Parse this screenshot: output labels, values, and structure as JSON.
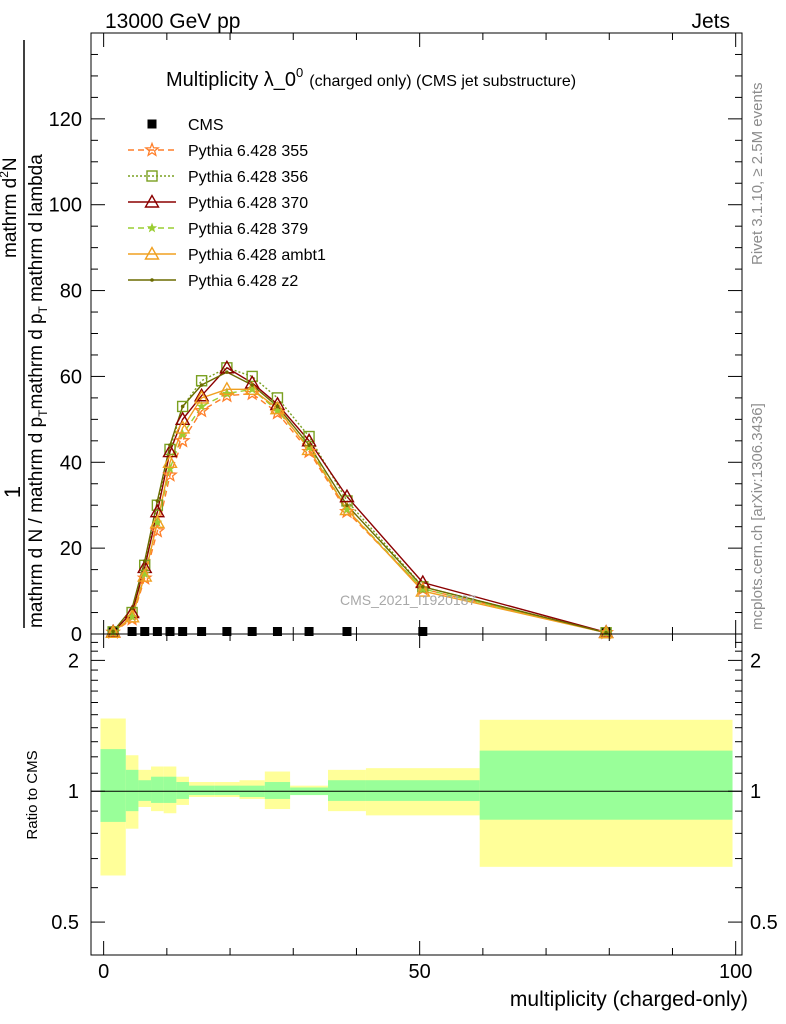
{
  "header": {
    "left": "13000 GeV pp",
    "right": "Jets"
  },
  "side_labels": {
    "rivet": "Rivet 3.1.10, ≥ 2.5M events",
    "mcplots": "mcplots.cern.ch [arXiv:1306.3436]"
  },
  "watermark": "CMS_2021_I1920187",
  "chart_data": [
    {
      "type": "line",
      "title_main": "Multiplicity λ_0",
      "title_sup": "0",
      "title_sub": "(charged only) (CMS jet substructure)",
      "ylabel_num": "1",
      "ylabel_den": "mathrm d N / mathrm d p",
      "ylabel_den_sub": "T",
      "ylabel_den_rest": "mathrm d p",
      "ylabel_den_rest_sub": "T",
      "ylabel_den_tail": "mathrm d lambda",
      "ylabel_num2": "mathrm d",
      "ylabel_num2_sup": "2",
      "ylabel_num2_rest": "N",
      "xlim": [
        -2,
        101
      ],
      "ylim": [
        0,
        140
      ],
      "yticks": [
        0,
        20,
        40,
        60,
        80,
        100,
        120
      ],
      "ytick_labels": [
        "0",
        "20",
        "40",
        "60",
        "80",
        "100",
        "120"
      ],
      "legend_position": "top-left",
      "series": [
        {
          "name": "CMS",
          "color": "#000000",
          "marker": "square",
          "dash": "",
          "x": [
            1.5,
            4.5,
            6.5,
            8.5,
            10.5,
            12.5,
            15.5,
            19.5,
            23.5,
            27.5,
            32.5,
            38.5,
            50.5,
            79.5
          ],
          "y": [
            0.6,
            0.6,
            0.6,
            0.6,
            0.6,
            0.6,
            0.6,
            0.6,
            0.6,
            0.6,
            0.6,
            0.6,
            0.6,
            0.6
          ]
        },
        {
          "name": "Pythia 6.428 355",
          "color": "#ff7f2a",
          "marker": "star",
          "dash": "6,4",
          "x": [
            1.5,
            4.5,
            6.5,
            8.5,
            10.5,
            12.5,
            15.5,
            19.5,
            23.5,
            27.5,
            32.5,
            38.5,
            50.5,
            79.5
          ],
          "y": [
            0.4,
            3.5,
            13,
            24,
            37,
            45,
            52,
            55.5,
            56,
            51.5,
            42.5,
            28.5,
            10.5,
            0.3
          ]
        },
        {
          "name": "Pythia 6.428 356",
          "color": "#7aa020",
          "marker": "square-open",
          "dash": "2,2",
          "x": [
            1.5,
            4.5,
            6.5,
            8.5,
            10.5,
            12.5,
            15.5,
            19.5,
            23.5,
            27.5,
            32.5,
            38.5,
            50.5,
            79.5
          ],
          "y": [
            0.5,
            5,
            16,
            30,
            43,
            53,
            59,
            62,
            60,
            55,
            46,
            31,
            11,
            0.3
          ]
        },
        {
          "name": "Pythia 6.428 370",
          "color": "#8b0000",
          "marker": "triangle-open",
          "dash": "",
          "x": [
            1.5,
            4.5,
            6.5,
            8.5,
            10.5,
            12.5,
            15.5,
            19.5,
            23.5,
            27.5,
            32.5,
            38.5,
            50.5,
            79.5
          ],
          "y": [
            0.5,
            5,
            15.5,
            28.5,
            42.5,
            50,
            55.5,
            62,
            58.5,
            53.5,
            45,
            32,
            12,
            0.4
          ]
        },
        {
          "name": "Pythia 6.428 379",
          "color": "#9acd32",
          "marker": "star-small",
          "dash": "6,4",
          "x": [
            1.5,
            4.5,
            6.5,
            8.5,
            10.5,
            12.5,
            15.5,
            19.5,
            23.5,
            27.5,
            32.5,
            38.5,
            50.5,
            79.5
          ],
          "y": [
            0.4,
            4,
            14,
            26,
            38.5,
            46.5,
            53,
            56,
            57,
            52,
            43.5,
            29,
            10.5,
            0.3
          ]
        },
        {
          "name": "Pythia 6.428 ambt1",
          "color": "#f0a020",
          "marker": "triangle-open",
          "dash": "",
          "x": [
            1.5,
            4.5,
            6.5,
            8.5,
            10.5,
            12.5,
            15.5,
            19.5,
            23.5,
            27.5,
            32.5,
            38.5,
            50.5,
            79.5
          ],
          "y": [
            0.4,
            4,
            13.5,
            26,
            40,
            48,
            55,
            57,
            57,
            52.5,
            43,
            29,
            10,
            0.3
          ]
        },
        {
          "name": "Pythia 6.428 z2",
          "color": "#6b6b00",
          "marker": "dot",
          "dash": "",
          "x": [
            1.5,
            4.5,
            6.5,
            8.5,
            10.5,
            12.5,
            15.5,
            19.5,
            23.5,
            27.5,
            32.5,
            38.5,
            50.5,
            79.5
          ],
          "y": [
            0.6,
            6,
            17,
            31,
            44,
            53,
            58,
            61,
            58,
            53,
            44,
            30,
            11,
            0.3
          ]
        }
      ]
    },
    {
      "type": "area",
      "ylabel": "Ratio to CMS",
      "xlabel": "multiplicity (charged-only)",
      "xlim": [
        -2,
        101
      ],
      "ylim": [
        0.42,
        2.3
      ],
      "log_y": true,
      "xticks": [
        0,
        50,
        100
      ],
      "xtick_labels": [
        "0",
        "50",
        "100"
      ],
      "yticks": [
        0.5,
        1,
        2
      ],
      "ytick_labels": [
        "0.5",
        "1",
        "2"
      ],
      "bins": [
        {
          "lo": -0.5,
          "hi": 3.5,
          "stat_lo": 0.85,
          "stat_hi": 1.25,
          "tot_lo": 0.64,
          "tot_hi": 1.47
        },
        {
          "lo": 3.5,
          "hi": 5.5,
          "stat_lo": 0.9,
          "stat_hi": 1.12,
          "tot_lo": 0.82,
          "tot_hi": 1.21
        },
        {
          "lo": 5.5,
          "hi": 7.5,
          "stat_lo": 0.95,
          "stat_hi": 1.06,
          "tot_lo": 0.92,
          "tot_hi": 1.12
        },
        {
          "lo": 7.5,
          "hi": 9.5,
          "stat_lo": 0.94,
          "stat_hi": 1.08,
          "tot_lo": 0.9,
          "tot_hi": 1.14
        },
        {
          "lo": 9.5,
          "hi": 11.5,
          "stat_lo": 0.94,
          "stat_hi": 1.08,
          "tot_lo": 0.89,
          "tot_hi": 1.14
        },
        {
          "lo": 11.5,
          "hi": 13.5,
          "stat_lo": 0.96,
          "stat_hi": 1.05,
          "tot_lo": 0.93,
          "tot_hi": 1.08
        },
        {
          "lo": 13.5,
          "hi": 17.5,
          "stat_lo": 0.98,
          "stat_hi": 1.03,
          "tot_lo": 0.97,
          "tot_hi": 1.05
        },
        {
          "lo": 17.5,
          "hi": 21.5,
          "stat_lo": 0.98,
          "stat_hi": 1.03,
          "tot_lo": 0.97,
          "tot_hi": 1.05
        },
        {
          "lo": 21.5,
          "hi": 25.5,
          "stat_lo": 0.97,
          "stat_hi": 1.03,
          "tot_lo": 0.96,
          "tot_hi": 1.06
        },
        {
          "lo": 25.5,
          "hi": 29.5,
          "stat_lo": 0.96,
          "stat_hi": 1.05,
          "tot_lo": 0.91,
          "tot_hi": 1.11
        },
        {
          "lo": 29.5,
          "hi": 35.5,
          "stat_lo": 0.98,
          "stat_hi": 1.02,
          "tot_lo": 0.98,
          "tot_hi": 1.03
        },
        {
          "lo": 35.5,
          "hi": 41.5,
          "stat_lo": 0.95,
          "stat_hi": 1.06,
          "tot_lo": 0.9,
          "tot_hi": 1.12
        },
        {
          "lo": 41.5,
          "hi": 59.5,
          "stat_lo": 0.95,
          "stat_hi": 1.06,
          "tot_lo": 0.88,
          "tot_hi": 1.13
        },
        {
          "lo": 59.5,
          "hi": 99.5,
          "stat_lo": 0.86,
          "stat_hi": 1.24,
          "tot_lo": 0.67,
          "tot_hi": 1.46
        }
      ],
      "band_colors": {
        "stat": "#99ff99",
        "total": "#ffff99"
      }
    }
  ]
}
